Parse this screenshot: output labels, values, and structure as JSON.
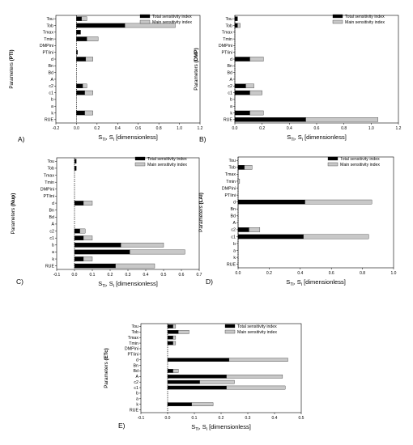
{
  "colors": {
    "total": "#000000",
    "main": "#c8c8c8"
  },
  "legend": {
    "total": "Total sensitivity index",
    "main": "Main sensitivity index"
  },
  "xlabel": {
    "base": "S",
    "sub_total": "Ti",
    "sep": ", S",
    "sub_main": "i",
    "unit": " [dimensionless]"
  },
  "chart_data": [
    {
      "type": "bar",
      "panel": "A)",
      "ylabel_prefix": "Parameters ",
      "ylabel_bold": "(PTI)",
      "categories": [
        "Tou",
        "Tob",
        "Tmax",
        "Tmin",
        "DMPini",
        "PTIini",
        "d",
        "Bn",
        "Bd",
        "A",
        "c2",
        "c1",
        "b",
        "a",
        "k",
        "RUE"
      ],
      "xlim": [
        -0.2,
        1.2
      ],
      "xticks": [
        "-0.2",
        "0.0",
        "0.2",
        "0.4",
        "0.6",
        "0.8",
        "1.0",
        "1.2"
      ],
      "series": [
        {
          "name": "Total sensitivity index",
          "values": [
            0.05,
            0.47,
            0.04,
            0.1,
            0.0,
            0.01,
            0.09,
            0.0,
            0.0,
            0.0,
            0.06,
            0.08,
            0.0,
            0.0,
            0.08,
            0.0
          ]
        },
        {
          "name": "Main sensitivity index",
          "values": [
            0.05,
            0.49,
            0.0,
            0.11,
            0.0,
            0.0,
            0.07,
            0.0,
            0.0,
            0.0,
            0.04,
            0.08,
            0.0,
            0.0,
            0.08,
            0.0
          ]
        }
      ]
    },
    {
      "type": "bar",
      "panel": "B)",
      "ylabel_prefix": "Parameters ",
      "ylabel_bold": "(DMP)",
      "categories": [
        "Tou",
        "Tob",
        "Tmax",
        "Tmin",
        "DMPini",
        "PTIini",
        "d",
        "Bn",
        "Bd",
        "A",
        "c2",
        "c1",
        "b",
        "a",
        "k",
        "RUE"
      ],
      "xlim": [
        0,
        1.2
      ],
      "xticks": [
        "0.0",
        "0.2",
        "0.4",
        "0.6",
        "0.8",
        "1.0",
        "1.2"
      ],
      "series": [
        {
          "name": "Total sensitivity index",
          "values": [
            0.02,
            0.02,
            0.0,
            0.0,
            0.0,
            0.0,
            0.11,
            0.0,
            0.0,
            0.0,
            0.08,
            0.11,
            0.0,
            0.0,
            0.11,
            0.52
          ]
        },
        {
          "name": "Main sensitivity index",
          "values": [
            0.0,
            0.02,
            0.0,
            0.0,
            0.0,
            0.0,
            0.1,
            0.0,
            0.0,
            0.0,
            0.06,
            0.09,
            0.0,
            0.0,
            0.1,
            0.53
          ]
        }
      ]
    },
    {
      "type": "bar",
      "panel": "C)",
      "ylabel_prefix": "Parameters ",
      "ylabel_bold": "(Nup)",
      "categories": [
        "Tou",
        "Tob",
        "Tmax",
        "Tmin",
        "DMPini",
        "PTIini",
        "d",
        "Bn",
        "Bd",
        "A",
        "c2",
        "c1",
        "b",
        "a",
        "k",
        "RUE"
      ],
      "xlim": [
        -0.1,
        0.7
      ],
      "xticks": [
        "-0.1",
        "0.0",
        "0.1",
        "0.2",
        "0.3",
        "0.4",
        "0.5",
        "0.6",
        "0.7"
      ],
      "series": [
        {
          "name": "Total sensitivity index",
          "values": [
            0.01,
            0.01,
            0.0,
            0.0,
            0.0,
            0.0,
            0.05,
            0.0,
            0.0,
            0.0,
            0.03,
            0.05,
            0.26,
            0.31,
            0.05,
            0.23
          ]
        },
        {
          "name": "Main sensitivity index",
          "values": [
            0.0,
            0.0,
            0.0,
            0.0,
            0.0,
            0.0,
            0.05,
            0.0,
            0.0,
            0.0,
            0.03,
            0.05,
            0.24,
            0.31,
            0.05,
            0.22
          ]
        }
      ]
    },
    {
      "type": "bar",
      "panel": "D)",
      "ylabel_prefix": "Parameters ",
      "ylabel_bold": "(LAI)",
      "categories": [
        "Tou",
        "Tob",
        "Tmax",
        "Tmin",
        "DMPini",
        "PTIini",
        "d",
        "Bn",
        "Bd",
        "A",
        "c2",
        "c1",
        "b",
        "a",
        "k",
        "RUE"
      ],
      "xlim": [
        0,
        1.0
      ],
      "xticks": [
        "0.0",
        "0.2",
        "0.4",
        "0.6",
        "0.8",
        "1.0"
      ],
      "series": [
        {
          "name": "Total sensitivity index",
          "values": [
            0.0,
            0.04,
            0.0,
            0.0,
            0.0,
            0.0,
            0.43,
            0.0,
            0.0,
            0.0,
            0.07,
            0.42,
            0.0,
            0.0,
            0.0,
            0.0
          ]
        },
        {
          "name": "Main sensitivity index",
          "values": [
            0.0,
            0.05,
            0.0,
            0.01,
            0.0,
            0.0,
            0.43,
            0.0,
            0.0,
            0.0,
            0.07,
            0.42,
            0.0,
            0.0,
            0.0,
            0.0
          ]
        }
      ]
    },
    {
      "type": "bar",
      "panel": "E)",
      "ylabel_prefix": "Parameters ",
      "ylabel_bold": "(ETc)",
      "categories": [
        "Tou",
        "Tob",
        "Tmax",
        "Tmin",
        "DMPini",
        "PTIini",
        "d",
        "Bn",
        "Bd",
        "A",
        "c2",
        "c1",
        "b",
        "a",
        "k",
        "RUE"
      ],
      "xlim": [
        -0.1,
        0.5
      ],
      "xticks": [
        "-0.1",
        "0.0",
        "0.1",
        "0.2",
        "0.3",
        "0.4",
        "0.5"
      ],
      "series": [
        {
          "name": "Total sensitivity index",
          "values": [
            0.02,
            0.04,
            0.02,
            0.02,
            0.0,
            0.0,
            0.23,
            0.0,
            0.02,
            0.22,
            0.12,
            0.22,
            0.0,
            0.0,
            0.09,
            0.0
          ]
        },
        {
          "name": "Main sensitivity index",
          "values": [
            0.01,
            0.04,
            0.01,
            0.01,
            0.0,
            0.0,
            0.22,
            0.0,
            0.02,
            0.21,
            0.13,
            0.22,
            0.0,
            0.0,
            0.08,
            0.0
          ]
        }
      ]
    }
  ]
}
